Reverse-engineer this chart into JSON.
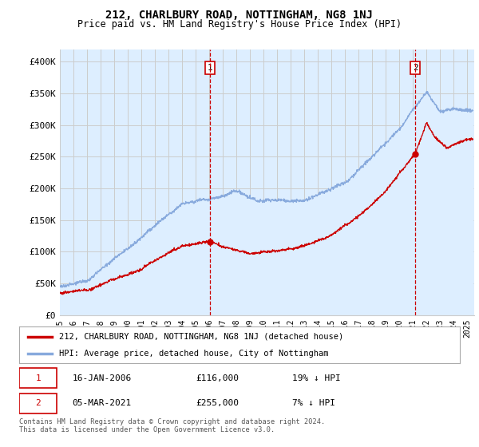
{
  "title": "212, CHARLBURY ROAD, NOTTINGHAM, NG8 1NJ",
  "subtitle": "Price paid vs. HM Land Registry's House Price Index (HPI)",
  "ylabel_ticks": [
    "£0",
    "£50K",
    "£100K",
    "£150K",
    "£200K",
    "£250K",
    "£300K",
    "£350K",
    "£400K"
  ],
  "ylim": [
    0,
    420000
  ],
  "xlim_start": 1995.0,
  "xlim_end": 2025.5,
  "sale1_x": 2006.04,
  "sale1_y": 116000,
  "sale1_label": "1",
  "sale1_date": "16-JAN-2006",
  "sale1_price": "£116,000",
  "sale1_hpi": "19% ↓ HPI",
  "sale2_x": 2021.17,
  "sale2_y": 255000,
  "sale2_label": "2",
  "sale2_date": "05-MAR-2021",
  "sale2_price": "£255,000",
  "sale2_hpi": "7% ↓ HPI",
  "line_color_sale": "#cc0000",
  "line_color_hpi": "#88aadd",
  "fill_color_hpi": "#ddeeff",
  "background_color": "#ffffff",
  "grid_color": "#cccccc",
  "legend_label_sale": "212, CHARLBURY ROAD, NOTTINGHAM, NG8 1NJ (detached house)",
  "legend_label_hpi": "HPI: Average price, detached house, City of Nottingham",
  "footer": "Contains HM Land Registry data © Crown copyright and database right 2024.\nThis data is licensed under the Open Government Licence v3.0.",
  "tick_years": [
    1995,
    1996,
    1997,
    1998,
    1999,
    2000,
    2001,
    2002,
    2003,
    2004,
    2005,
    2006,
    2007,
    2008,
    2009,
    2010,
    2011,
    2012,
    2013,
    2014,
    2015,
    2016,
    2017,
    2018,
    2019,
    2020,
    2021,
    2022,
    2023,
    2024,
    2025
  ]
}
